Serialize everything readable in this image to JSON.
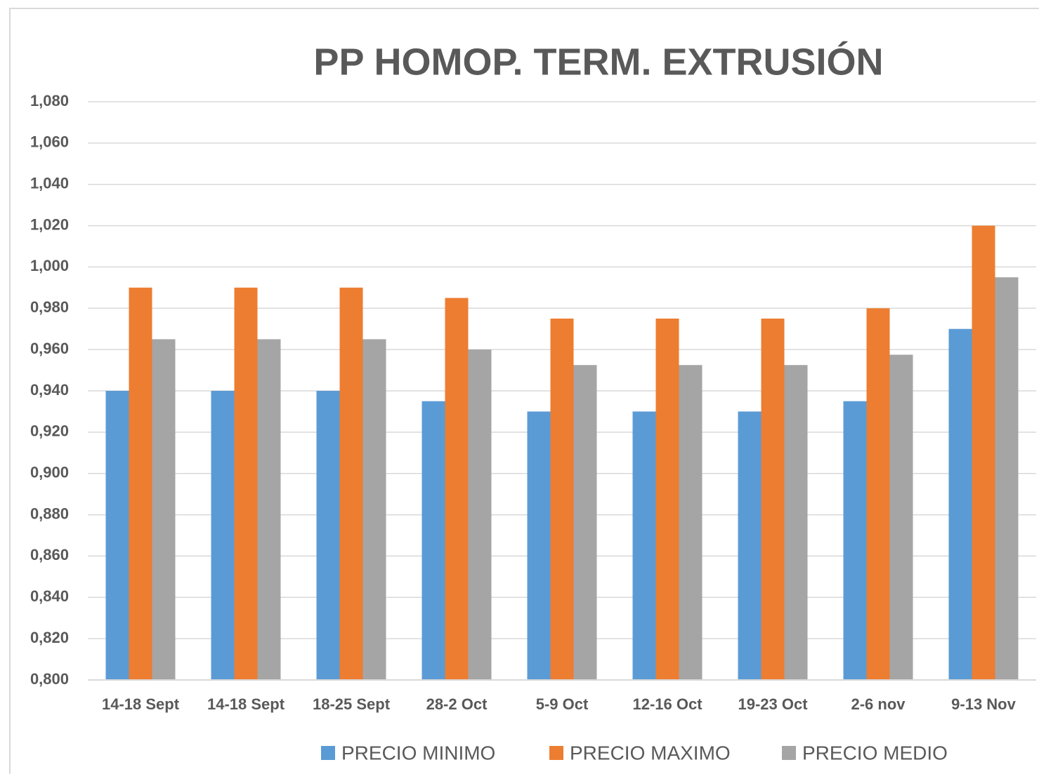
{
  "chart_data": {
    "type": "bar",
    "title": "PP HOMOP. TERM. EXTRUSIÓN",
    "categories": [
      "14-18 Sept",
      "14-18 Sept",
      "18-25 Sept",
      "28-2 Oct",
      "5-9 Oct",
      "12-16 Oct",
      "19-23 Oct",
      "2-6 nov",
      "9-13 Nov"
    ],
    "series": [
      {
        "name": "PRECIO MINIMO",
        "color": "#5b9bd5",
        "values": [
          0.94,
          0.94,
          0.94,
          0.935,
          0.93,
          0.93,
          0.93,
          0.935,
          0.97
        ]
      },
      {
        "name": "PRECIO MAXIMO",
        "color": "#ed7d31",
        "values": [
          0.99,
          0.99,
          0.99,
          0.985,
          0.975,
          0.975,
          0.975,
          0.98,
          1.02
        ]
      },
      {
        "name": "PRECIO MEDIO",
        "color": "#a5a5a5",
        "values": [
          0.965,
          0.965,
          0.965,
          0.96,
          0.9525,
          0.9525,
          0.9525,
          0.9575,
          0.995
        ]
      }
    ],
    "ylim": [
      0.8,
      1.08
    ],
    "yticks": [
      {
        "value": 0.8,
        "label": "0,800"
      },
      {
        "value": 0.82,
        "label": "0,820"
      },
      {
        "value": 0.84,
        "label": "0,840"
      },
      {
        "value": 0.86,
        "label": "0,860"
      },
      {
        "value": 0.88,
        "label": "0,880"
      },
      {
        "value": 0.9,
        "label": "0,900"
      },
      {
        "value": 0.92,
        "label": "0,920"
      },
      {
        "value": 0.94,
        "label": "0,940"
      },
      {
        "value": 0.96,
        "label": "0,960"
      },
      {
        "value": 0.98,
        "label": "0,980"
      },
      {
        "value": 1.0,
        "label": "1,000"
      },
      {
        "value": 1.02,
        "label": "1,020"
      },
      {
        "value": 1.04,
        "label": "1,040"
      },
      {
        "value": 1.06,
        "label": "1,060"
      },
      {
        "value": 1.08,
        "label": "1,080"
      }
    ],
    "grid": true,
    "legend": "bottom"
  }
}
